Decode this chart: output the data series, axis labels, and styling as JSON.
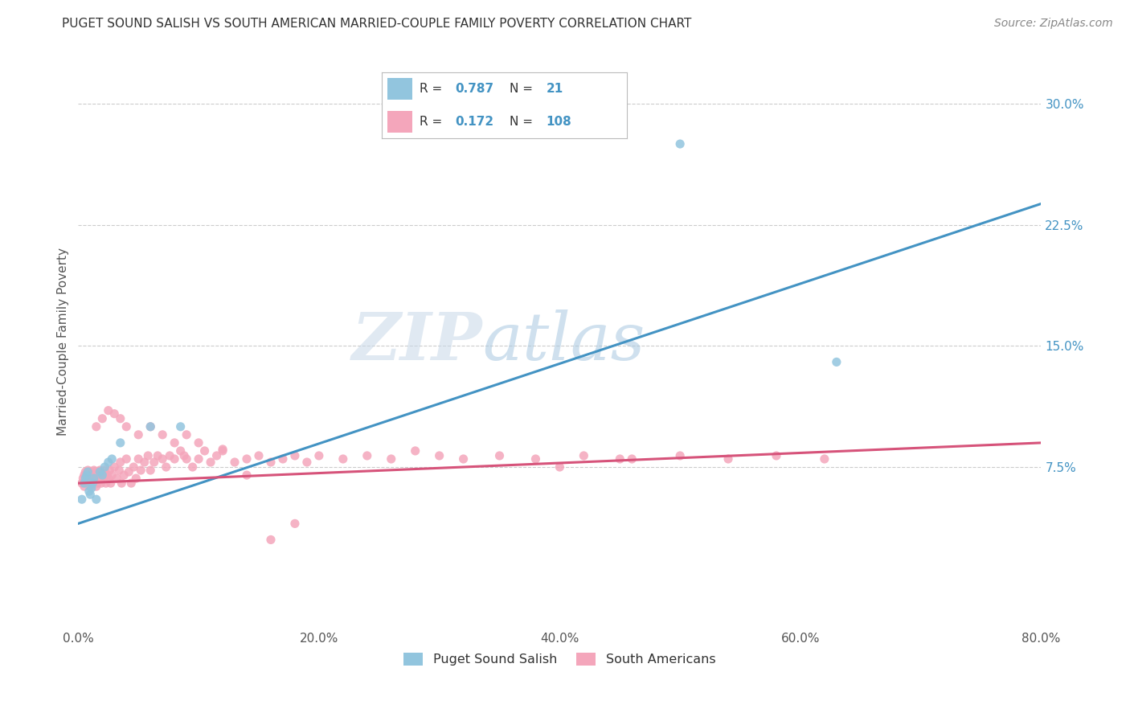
{
  "title": "PUGET SOUND SALISH VS SOUTH AMERICAN MARRIED-COUPLE FAMILY POVERTY CORRELATION CHART",
  "source": "Source: ZipAtlas.com",
  "ylabel": "Married-Couple Family Poverty",
  "xlim": [
    0,
    0.8
  ],
  "ylim": [
    -0.025,
    0.33
  ],
  "xticks": [
    0.0,
    0.2,
    0.4,
    0.6,
    0.8
  ],
  "yticks": [
    0.075,
    0.15,
    0.225,
    0.3
  ],
  "ytick_labels": [
    "7.5%",
    "15.0%",
    "22.5%",
    "30.0%"
  ],
  "xtick_labels": [
    "0.0%",
    "20.0%",
    "40.0%",
    "60.0%",
    "80.0%"
  ],
  "legend_labels": [
    "Puget Sound Salish",
    "South Americans"
  ],
  "blue_color": "#92c5de",
  "pink_color": "#f4a6bb",
  "blue_line_color": "#4393c3",
  "pink_line_color": "#d6537a",
  "R_blue": "0.787",
  "N_blue": "21",
  "R_pink": "0.172",
  "N_pink": "108",
  "watermark_zip": "ZIP",
  "watermark_atlas": "atlas",
  "background_color": "#ffffff",
  "grid_color": "#cccccc",
  "blue_line_x0": 0.0,
  "blue_line_y0": 0.04,
  "blue_line_x1": 0.8,
  "blue_line_y1": 0.238,
  "pink_line_x0": 0.0,
  "pink_line_y0": 0.065,
  "pink_line_x1": 0.8,
  "pink_line_y1": 0.09,
  "blue_x": [
    0.003,
    0.005,
    0.006,
    0.007,
    0.008,
    0.009,
    0.01,
    0.011,
    0.012,
    0.013,
    0.015,
    0.018,
    0.02,
    0.022,
    0.025,
    0.028,
    0.035,
    0.06,
    0.085,
    0.5,
    0.63
  ],
  "blue_y": [
    0.055,
    0.065,
    0.068,
    0.07,
    0.072,
    0.06,
    0.058,
    0.062,
    0.065,
    0.068,
    0.055,
    0.072,
    0.07,
    0.075,
    0.078,
    0.08,
    0.09,
    0.1,
    0.1,
    0.275,
    0.14
  ],
  "pink_x": [
    0.003,
    0.004,
    0.005,
    0.005,
    0.006,
    0.006,
    0.007,
    0.007,
    0.008,
    0.008,
    0.009,
    0.009,
    0.01,
    0.01,
    0.011,
    0.011,
    0.012,
    0.012,
    0.013,
    0.013,
    0.014,
    0.015,
    0.015,
    0.016,
    0.017,
    0.018,
    0.018,
    0.019,
    0.02,
    0.021,
    0.022,
    0.023,
    0.024,
    0.025,
    0.026,
    0.027,
    0.028,
    0.03,
    0.032,
    0.034,
    0.035,
    0.036,
    0.038,
    0.04,
    0.042,
    0.044,
    0.046,
    0.048,
    0.05,
    0.052,
    0.055,
    0.058,
    0.06,
    0.063,
    0.066,
    0.07,
    0.073,
    0.076,
    0.08,
    0.085,
    0.088,
    0.09,
    0.095,
    0.1,
    0.105,
    0.11,
    0.115,
    0.12,
    0.13,
    0.14,
    0.15,
    0.16,
    0.17,
    0.18,
    0.19,
    0.2,
    0.22,
    0.24,
    0.26,
    0.28,
    0.3,
    0.32,
    0.35,
    0.38,
    0.42,
    0.46,
    0.5,
    0.54,
    0.58,
    0.62,
    0.015,
    0.02,
    0.025,
    0.03,
    0.035,
    0.04,
    0.05,
    0.06,
    0.07,
    0.08,
    0.09,
    0.1,
    0.12,
    0.14,
    0.16,
    0.18,
    0.4,
    0.45
  ],
  "pink_y": [
    0.065,
    0.068,
    0.063,
    0.07,
    0.067,
    0.072,
    0.065,
    0.07,
    0.068,
    0.073,
    0.065,
    0.07,
    0.063,
    0.068,
    0.067,
    0.072,
    0.065,
    0.07,
    0.068,
    0.073,
    0.068,
    0.063,
    0.072,
    0.065,
    0.07,
    0.068,
    0.073,
    0.065,
    0.07,
    0.068,
    0.073,
    0.065,
    0.07,
    0.068,
    0.073,
    0.065,
    0.07,
    0.075,
    0.068,
    0.073,
    0.078,
    0.065,
    0.07,
    0.08,
    0.072,
    0.065,
    0.075,
    0.068,
    0.08,
    0.073,
    0.078,
    0.082,
    0.073,
    0.078,
    0.082,
    0.08,
    0.075,
    0.082,
    0.08,
    0.085,
    0.082,
    0.08,
    0.075,
    0.08,
    0.085,
    0.078,
    0.082,
    0.086,
    0.078,
    0.08,
    0.082,
    0.078,
    0.08,
    0.082,
    0.078,
    0.082,
    0.08,
    0.082,
    0.08,
    0.085,
    0.082,
    0.08,
    0.082,
    0.08,
    0.082,
    0.08,
    0.082,
    0.08,
    0.082,
    0.08,
    0.1,
    0.105,
    0.11,
    0.108,
    0.105,
    0.1,
    0.095,
    0.1,
    0.095,
    0.09,
    0.095,
    0.09,
    0.085,
    0.07,
    0.03,
    0.04,
    0.075,
    0.08
  ],
  "title_fontsize": 11,
  "source_fontsize": 10,
  "tick_fontsize": 11,
  "ylabel_fontsize": 11
}
